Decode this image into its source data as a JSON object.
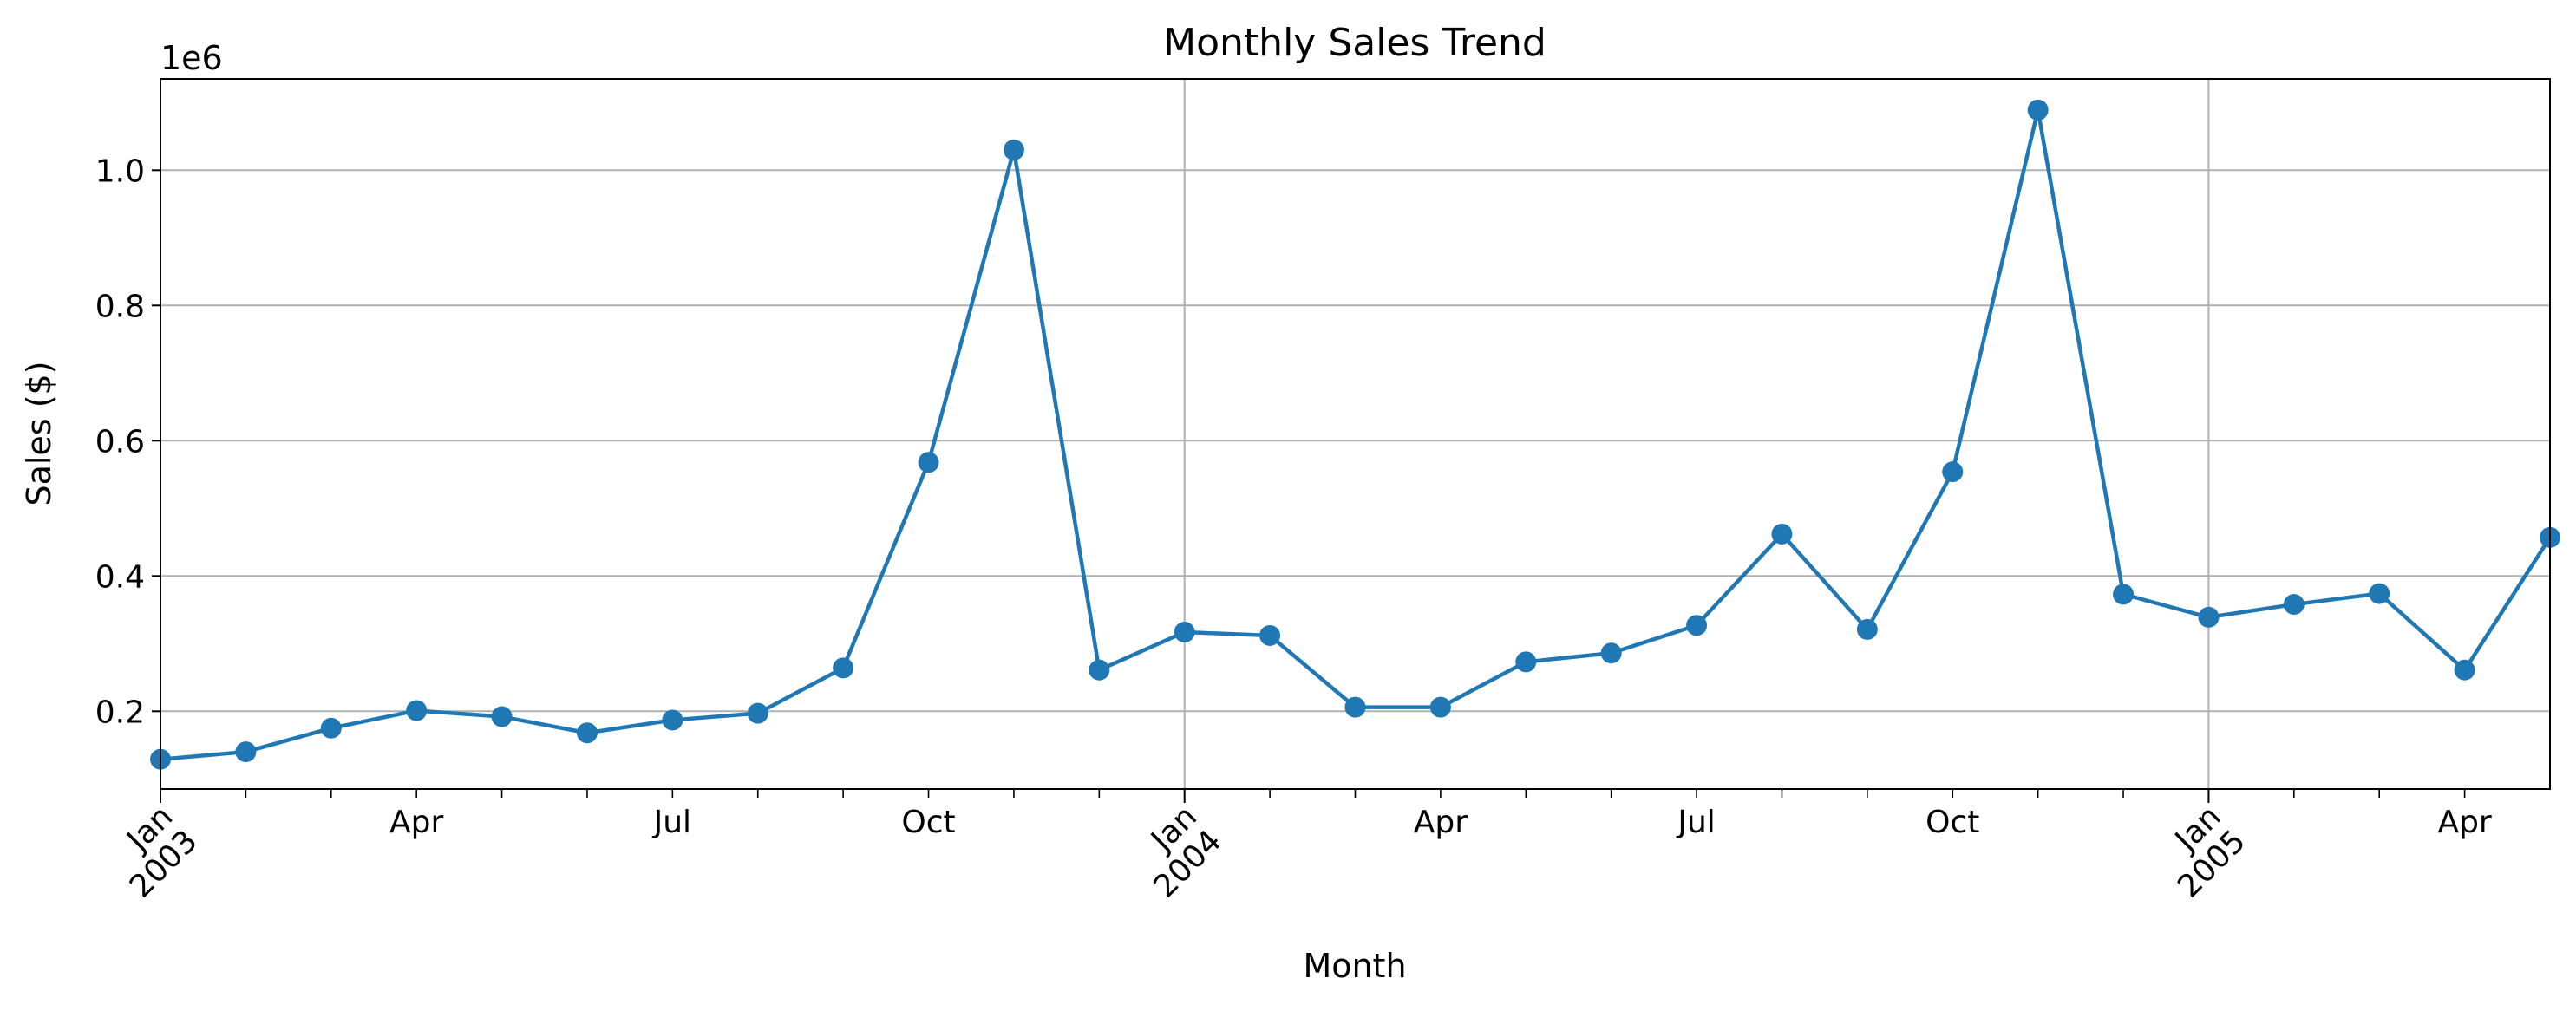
{
  "chart_data": {
    "type": "line",
    "title": "Monthly Sales Trend",
    "xlabel": "Month",
    "ylabel": "Sales ($)",
    "y_offset_label": "1e6",
    "ylim": [
      0.085,
      1.135
    ],
    "xlim": [
      "2003-01",
      "2005-05"
    ],
    "grid": true,
    "y_ticks": [
      {
        "value": 0.2,
        "label": "0.2"
      },
      {
        "value": 0.4,
        "label": "0.4"
      },
      {
        "value": 0.6,
        "label": "0.6"
      },
      {
        "value": 0.8,
        "label": "0.8"
      },
      {
        "value": 1.0,
        "label": "1.0"
      }
    ],
    "x_major_ticks": [
      {
        "date": "2003-01",
        "label": "Jan\n2003"
      },
      {
        "date": "2004-01",
        "label": "Jan\n2004"
      },
      {
        "date": "2005-01",
        "label": "Jan\n2005"
      }
    ],
    "x_minor_labels": [
      {
        "date": "2003-04",
        "label": "Apr"
      },
      {
        "date": "2003-07",
        "label": "Jul"
      },
      {
        "date": "2003-10",
        "label": "Oct"
      },
      {
        "date": "2004-04",
        "label": "Apr"
      },
      {
        "date": "2004-07",
        "label": "Jul"
      },
      {
        "date": "2004-10",
        "label": "Oct"
      },
      {
        "date": "2005-04",
        "label": "Apr"
      }
    ],
    "series": [
      {
        "color": "#1f77b4",
        "x": [
          "2003-01",
          "2003-02",
          "2003-03",
          "2003-04",
          "2003-05",
          "2003-06",
          "2003-07",
          "2003-08",
          "2003-09",
          "2003-10",
          "2003-11",
          "2003-12",
          "2004-01",
          "2004-02",
          "2004-03",
          "2004-04",
          "2004-05",
          "2004-06",
          "2004-07",
          "2004-08",
          "2004-09",
          "2004-10",
          "2004-11",
          "2004-12",
          "2005-01",
          "2005-02",
          "2005-03",
          "2005-04",
          "2005-05"
        ],
        "values": [
          0.129,
          0.14,
          0.175,
          0.201,
          0.192,
          0.168,
          0.187,
          0.197,
          0.264,
          0.568,
          1.03,
          0.261,
          0.317,
          0.312,
          0.206,
          0.206,
          0.273,
          0.286,
          0.327,
          0.462,
          0.321,
          0.554,
          1.089,
          0.373,
          0.339,
          0.358,
          0.374,
          0.261,
          0.457
        ]
      }
    ]
  }
}
